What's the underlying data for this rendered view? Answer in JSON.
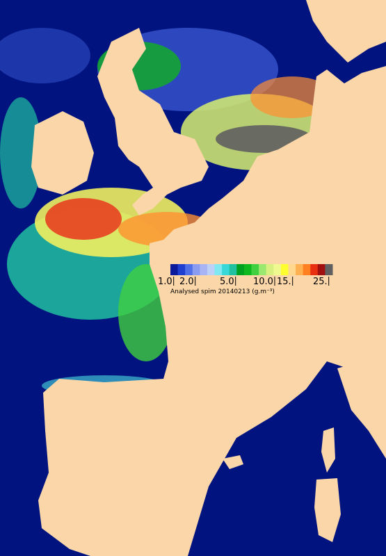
{
  "legend": {
    "colors": [
      "#0a1a9a",
      "#1f3fd0",
      "#4f6fe8",
      "#8a9cf0",
      "#a8b4f4",
      "#bcd0f8",
      "#7fe8f0",
      "#38d8d8",
      "#20c0a0",
      "#00a020",
      "#10b820",
      "#40d040",
      "#9ae870",
      "#d8f080",
      "#f0f890",
      "#ffff30",
      "#ffd890",
      "#ffb050",
      "#ff8020",
      "#e83010",
      "#a01010",
      "#606060"
    ],
    "ticks": [
      "1.0",
      "2.0",
      "5.0",
      "10.0",
      "15.",
      "25."
    ],
    "caption": "Analysed spim 20140213 (g.m⁻³)"
  }
}
